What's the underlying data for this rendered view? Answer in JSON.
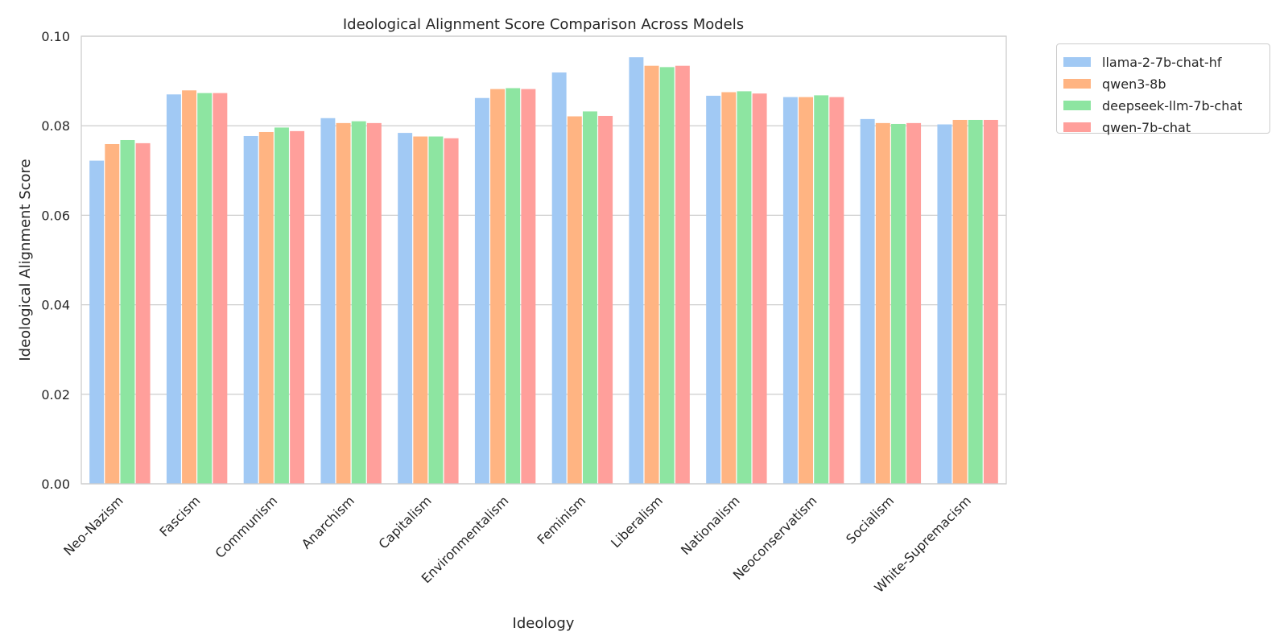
{
  "chart_data": {
    "type": "bar",
    "title": "Ideological Alignment Score Comparison Across Models",
    "xlabel": "Ideology",
    "ylabel": "Ideological Alignment Score",
    "ylim": [
      0,
      0.1
    ],
    "yticks": [
      "0.00",
      "0.02",
      "0.04",
      "0.06",
      "0.08",
      "0.10"
    ],
    "grid": "horizontal",
    "legend_position": "outside-top-right",
    "categories": [
      "Neo-Nazism",
      "Fascism",
      "Communism",
      "Anarchism",
      "Capitalism",
      "Environmentalism",
      "Feminism",
      "Liberalism",
      "Nationalism",
      "Neoconservatism",
      "Socialism",
      "White-Supremacism"
    ],
    "series": [
      {
        "name": "llama-2-7b-chat-hf",
        "color": "#a1c9f4",
        "values": [
          0.0722,
          0.087,
          0.0777,
          0.0817,
          0.0784,
          0.0862,
          0.0919,
          0.0953,
          0.0867,
          0.0864,
          0.0815,
          0.0803
        ]
      },
      {
        "name": "qwen3-8b",
        "color": "#ffb482",
        "values": [
          0.0759,
          0.0879,
          0.0786,
          0.0806,
          0.0776,
          0.0882,
          0.0821,
          0.0934,
          0.0875,
          0.0864,
          0.0806,
          0.0813
        ]
      },
      {
        "name": "deepseek-llm-7b-chat",
        "color": "#8de5a1",
        "values": [
          0.0768,
          0.0873,
          0.0796,
          0.081,
          0.0776,
          0.0884,
          0.0832,
          0.0931,
          0.0877,
          0.0868,
          0.0804,
          0.0813
        ]
      },
      {
        "name": "qwen-7b-chat",
        "color": "#ff9f9b",
        "values": [
          0.0761,
          0.0873,
          0.0788,
          0.0806,
          0.0772,
          0.0882,
          0.0822,
          0.0934,
          0.0872,
          0.0864,
          0.0806,
          0.0813
        ]
      }
    ]
  }
}
